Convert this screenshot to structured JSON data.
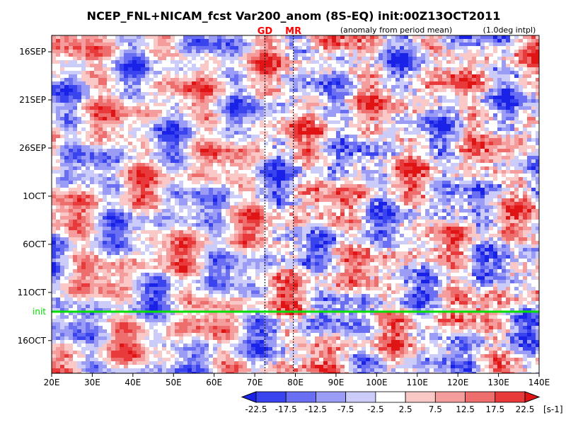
{
  "chart_data": {
    "type": "heatmap",
    "title": "NCEP_FNL+NICAM_fcst Var200_anom (8S-EQ) init:00Z13OCT2011",
    "note_left": "(anomaly from period mean)",
    "note_right": "(1.0deg intpl)",
    "markers": [
      {
        "label": "GD",
        "lon": 72.5,
        "color": "#ff0000"
      },
      {
        "label": "MR",
        "lon": 79.5,
        "color": "#ff0000"
      }
    ],
    "x_ticks": [
      "20E",
      "30E",
      "40E",
      "50E",
      "60E",
      "70E",
      "80E",
      "90E",
      "100E",
      "110E",
      "120E",
      "130E",
      "140E"
    ],
    "x_range": [
      20,
      140
    ],
    "y_ticks": [
      {
        "label": "16SEP",
        "day": 0
      },
      {
        "label": "21SEP",
        "day": 5
      },
      {
        "label": "26SEP",
        "day": 10
      },
      {
        "label": "1OCT",
        "day": 15
      },
      {
        "label": "6OCT",
        "day": 20
      },
      {
        "label": "11OCT",
        "day": 25
      },
      {
        "label": "16OCT",
        "day": 30
      }
    ],
    "y_range_days": [
      -1.7,
      33.4
    ],
    "init_line": {
      "label": "init",
      "day": 27.0,
      "color": "#00dd00"
    },
    "colorbar": {
      "levels": [
        "-22.5",
        "-17.5",
        "-12.5",
        "-7.5",
        "-2.5",
        "2.5",
        "7.5",
        "12.5",
        "17.5",
        "22.5"
      ],
      "colors": [
        "#1a22e8",
        "#3a44ee",
        "#6a6ef2",
        "#9a9cf6",
        "#ccccfa",
        "#ffffff",
        "#fbc8c8",
        "#f59c9c",
        "#ee6e6e",
        "#e83a3a",
        "#e01414"
      ],
      "unit": "[s-1]"
    }
  }
}
